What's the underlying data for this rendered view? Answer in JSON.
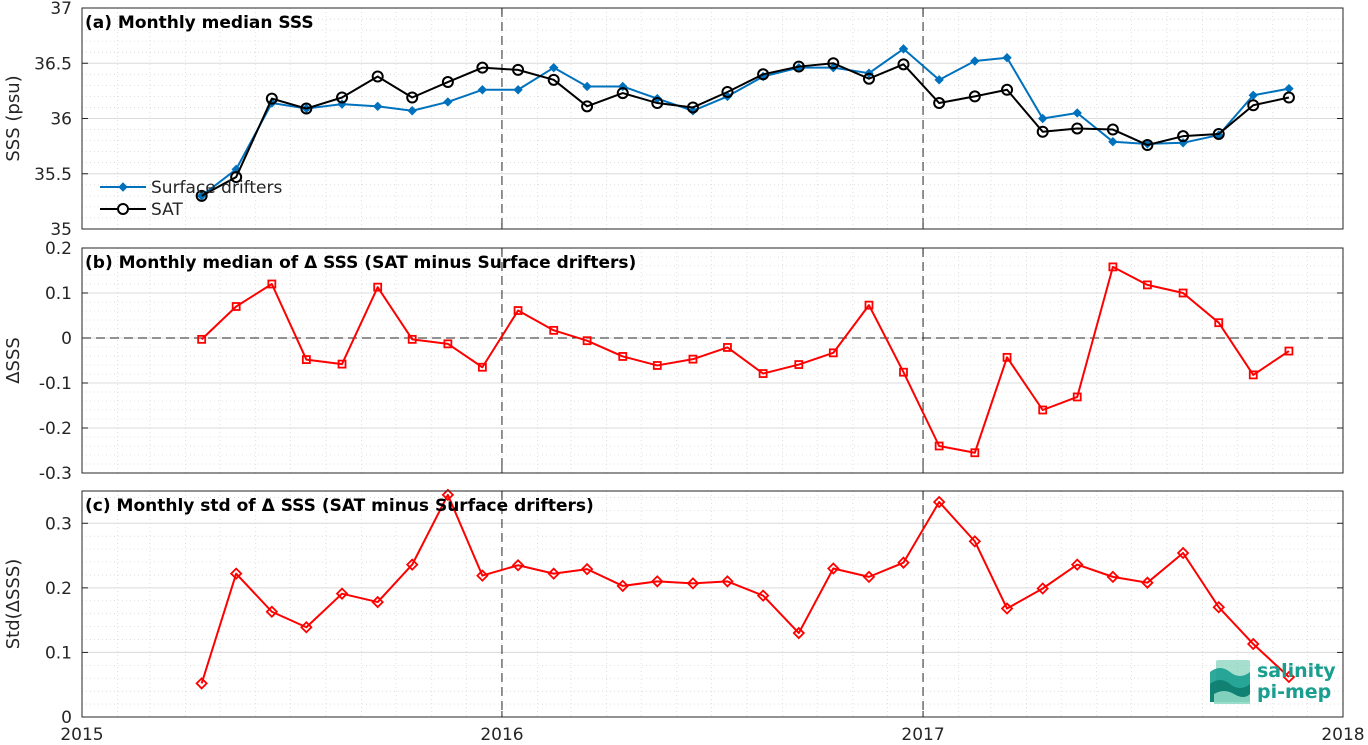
{
  "chart_data": [
    {
      "type": "line",
      "title": "(a) Monthly median SSS",
      "ylabel": "SSS (psu)",
      "xlabel": "",
      "xlim": [
        "2015-01-01",
        "2018-01-01"
      ],
      "ylim": [
        35,
        37
      ],
      "yticks": [
        35,
        35.5,
        36,
        36.5,
        37
      ],
      "ytick_labels": [
        "35",
        "35.5",
        "36",
        "36.5",
        "37"
      ],
      "grid": true,
      "legend_position": "lower-left",
      "x": [
        "2015-04-15",
        "2015-05-15",
        "2015-06-15",
        "2015-07-15",
        "2015-08-15",
        "2015-09-15",
        "2015-10-15",
        "2015-11-15",
        "2015-12-15",
        "2016-01-15",
        "2016-02-15",
        "2016-03-15",
        "2016-04-15",
        "2016-05-15",
        "2016-06-15",
        "2016-07-15",
        "2016-08-15",
        "2016-09-15",
        "2016-10-15",
        "2016-11-15",
        "2016-12-15",
        "2017-01-15",
        "2017-02-15",
        "2017-03-15",
        "2017-04-15",
        "2017-05-15",
        "2017-06-15",
        "2017-07-15",
        "2017-08-15",
        "2017-09-15",
        "2017-10-15",
        "2017-11-15"
      ],
      "series": [
        {
          "name": "Surface drifters",
          "color": "#0072BD",
          "marker": "diamond-filled",
          "values": [
            35.3,
            35.54,
            36.14,
            36.09,
            36.13,
            36.11,
            36.07,
            36.15,
            36.26,
            36.26,
            36.46,
            36.29,
            36.29,
            36.18,
            36.07,
            36.2,
            36.38,
            36.46,
            36.46,
            36.41,
            36.63,
            36.35,
            36.52,
            36.55,
            36.0,
            36.05,
            35.79,
            35.77,
            35.78,
            35.85,
            36.21,
            36.27
          ]
        },
        {
          "name": "SAT",
          "color": "#000000",
          "marker": "circle-open",
          "values": [
            35.3,
            35.47,
            36.18,
            36.09,
            36.19,
            36.38,
            36.19,
            36.33,
            36.46,
            36.44,
            36.35,
            36.11,
            36.23,
            36.14,
            36.1,
            36.24,
            36.4,
            36.47,
            36.5,
            36.36,
            36.49,
            36.14,
            36.2,
            36.26,
            35.88,
            35.91,
            35.9,
            35.76,
            35.84,
            35.86,
            36.12,
            36.19
          ]
        }
      ],
      "vlines": [
        "2016-01-01",
        "2017-01-01"
      ]
    },
    {
      "type": "line",
      "title": "(b) Monthly median of Δ SSS (SAT minus Surface drifters)",
      "ylabel": "ΔSSS",
      "xlabel": "",
      "xlim": [
        "2015-01-01",
        "2018-01-01"
      ],
      "ylim": [
        -0.3,
        0.2
      ],
      "yticks": [
        -0.3,
        -0.2,
        -0.1,
        0,
        0.1,
        0.2
      ],
      "ytick_labels": [
        "-0.3",
        "-0.2",
        "-0.1",
        "0",
        "0.1",
        "0.2"
      ],
      "grid": true,
      "hline": 0,
      "x": [
        "2015-04-15",
        "2015-05-15",
        "2015-06-15",
        "2015-07-15",
        "2015-08-15",
        "2015-09-15",
        "2015-10-15",
        "2015-11-15",
        "2015-12-15",
        "2016-01-15",
        "2016-02-15",
        "2016-03-15",
        "2016-04-15",
        "2016-05-15",
        "2016-06-15",
        "2016-07-15",
        "2016-08-15",
        "2016-09-15",
        "2016-10-15",
        "2016-11-15",
        "2016-12-15",
        "2017-01-15",
        "2017-02-15",
        "2017-03-15",
        "2017-04-15",
        "2017-05-15",
        "2017-06-15",
        "2017-07-15",
        "2017-08-15",
        "2017-09-15",
        "2017-10-15",
        "2017-11-15"
      ],
      "series": [
        {
          "color": "#FF0000",
          "marker": "square-open",
          "values": [
            -0.003,
            0.07,
            0.12,
            -0.048,
            -0.058,
            0.113,
            -0.003,
            -0.013,
            -0.065,
            0.061,
            0.017,
            -0.006,
            -0.041,
            -0.061,
            -0.047,
            -0.021,
            -0.079,
            -0.059,
            -0.033,
            0.073,
            -0.076,
            -0.24,
            -0.255,
            -0.043,
            -0.16,
            -0.131,
            0.158,
            0.118,
            0.1,
            0.034,
            -0.082,
            -0.029
          ]
        }
      ],
      "vlines": [
        "2016-01-01",
        "2017-01-01"
      ]
    },
    {
      "type": "line",
      "title": "(c) Monthly std of Δ SSS (SAT minus Surface drifters)",
      "ylabel": "Std(ΔSSS)",
      "xlabel": "",
      "xlim": [
        "2015-01-01",
        "2018-01-01"
      ],
      "ylim": [
        0,
        0.35
      ],
      "yticks": [
        0,
        0.1,
        0.2,
        0.3
      ],
      "ytick_labels": [
        "0",
        "0.1",
        "0.2",
        "0.3"
      ],
      "xticks": [
        "2015-01-01",
        "2016-01-01",
        "2017-01-01",
        "2018-01-01"
      ],
      "xtick_labels": [
        "2015",
        "2016",
        "2017",
        "2018"
      ],
      "grid": true,
      "x": [
        "2015-04-15",
        "2015-05-15",
        "2015-06-15",
        "2015-07-15",
        "2015-08-15",
        "2015-09-15",
        "2015-10-15",
        "2015-11-15",
        "2015-12-15",
        "2016-01-15",
        "2016-02-15",
        "2016-03-15",
        "2016-04-15",
        "2016-05-15",
        "2016-06-15",
        "2016-07-15",
        "2016-08-15",
        "2016-09-15",
        "2016-10-15",
        "2016-11-15",
        "2016-12-15",
        "2017-01-15",
        "2017-02-15",
        "2017-03-15",
        "2017-04-15",
        "2017-05-15",
        "2017-06-15",
        "2017-07-15",
        "2017-08-15",
        "2017-09-15",
        "2017-10-15",
        "2017-11-15"
      ],
      "series": [
        {
          "color": "#FF0000",
          "marker": "diamond-open",
          "values": [
            0.052,
            0.222,
            0.163,
            0.139,
            0.191,
            0.178,
            0.236,
            0.344,
            0.219,
            0.235,
            0.222,
            0.229,
            0.203,
            0.21,
            0.207,
            0.21,
            0.188,
            0.13,
            0.23,
            0.217,
            0.239,
            0.333,
            0.272,
            0.168,
            0.199,
            0.236,
            0.217,
            0.208,
            0.254,
            0.17,
            0.113,
            0.062
          ]
        }
      ],
      "vlines": [
        "2016-01-01",
        "2017-01-01"
      ]
    }
  ],
  "logo": {
    "line1": "salinity",
    "line2": "pi-mep",
    "color": "#1a9e8f"
  }
}
